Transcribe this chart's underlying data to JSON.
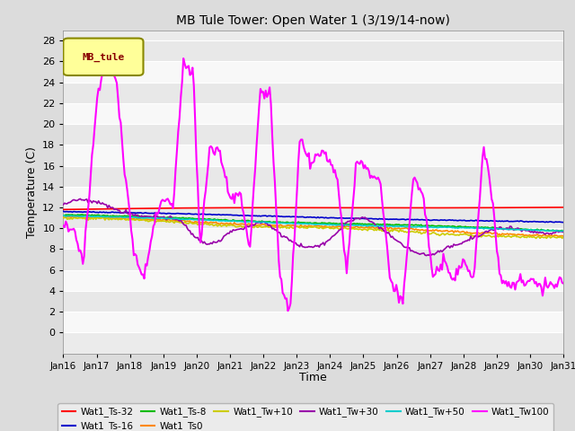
{
  "title": "MB Tule Tower: Open Water 1 (3/19/14-now)",
  "xlabel": "Time",
  "ylabel": "Temperature (C)",
  "ylim": [
    -2,
    29
  ],
  "yticks": [
    0,
    2,
    4,
    6,
    8,
    10,
    12,
    14,
    16,
    18,
    20,
    22,
    24,
    26,
    28
  ],
  "bg_color": "#dcdcdc",
  "plot_bg": "#ebebeb",
  "grid_color": "#ffffff",
  "legend_label": "MB_tule",
  "xtick_labels": [
    "Jan 16",
    "Jan 17",
    "Jan 18",
    "Jan 19",
    "Jan 20",
    "Jan 21",
    "Jan 22",
    "Jan 23",
    "Jan 24",
    "Jan 25",
    "Jan 26",
    "Jan 27",
    "Jan 28",
    "Jan 29",
    "Jan 30",
    "Jan 31"
  ],
  "series": [
    {
      "label": "Wat1_Ts-32",
      "color": "#ff0000"
    },
    {
      "label": "Wat1_Ts-16",
      "color": "#0000cc"
    },
    {
      "label": "Wat1_Ts-8",
      "color": "#00bb00"
    },
    {
      "label": "Wat1_Ts0",
      "color": "#ff8800"
    },
    {
      "label": "Wat1_Tw+10",
      "color": "#cccc00"
    },
    {
      "label": "Wat1_Tw+30",
      "color": "#9900aa"
    },
    {
      "label": "Wat1_Tw+50",
      "color": "#00cccc"
    },
    {
      "label": "Wat1_Tw100",
      "color": "#ff00ff"
    }
  ]
}
